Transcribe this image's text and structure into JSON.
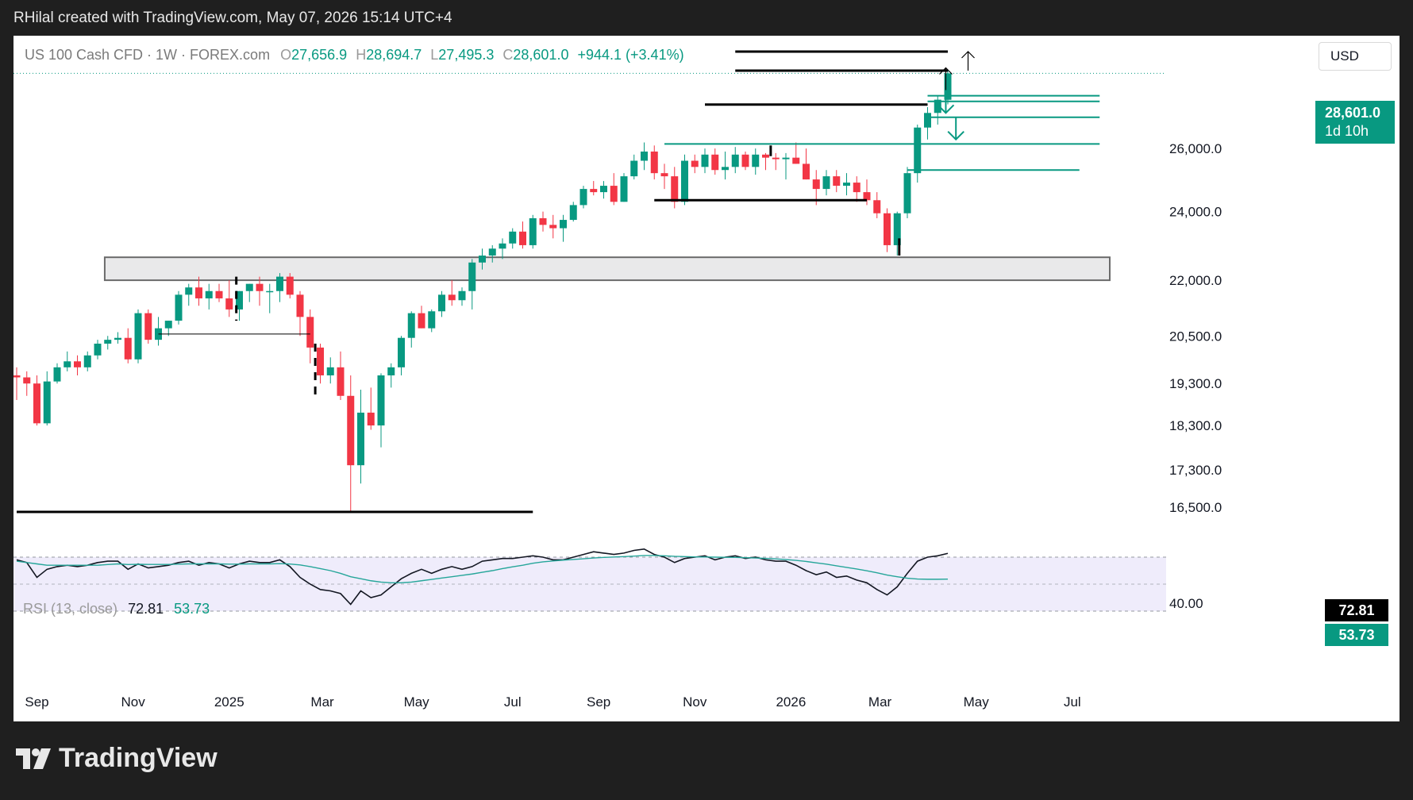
{
  "header": {
    "attribution": "RHilal created with TradingView.com, May 07, 2026 15:14 UTC+4"
  },
  "legend": {
    "symbol": "US 100 Cash CFD · 1W · FOREX.com",
    "o_label": "O",
    "o_value": "27,656.9",
    "h_label": "H",
    "h_value": "28,694.7",
    "l_label": "L",
    "l_value": "27,495.3",
    "c_label": "C",
    "c_value": "28,601.0",
    "change": "+944.1 (+3.41%)"
  },
  "currency_button": "USD",
  "price_tag": {
    "price": "28,601.0",
    "countdown": "1d 10h"
  },
  "rsi": {
    "label": "RSI (13, close)",
    "value": "72.81",
    "ma_value": "53.73"
  },
  "brand": {
    "name": "TradingView"
  },
  "colors": {
    "up": "#089981",
    "down": "#f23645",
    "rsi_line": "#131722",
    "rsi_ma": "#26a69a",
    "rsi_band": "#efecfb"
  },
  "chart_data": {
    "type": "candlestick",
    "price_axis_labels": [
      "26,000.0",
      "24,000.0",
      "22,000.0",
      "20,500.0",
      "19,300.0",
      "18,300.0",
      "17,300.0",
      "16,500.0"
    ],
    "rsi_axis_labels": [
      "40.00"
    ],
    "time_axis_labels": [
      "Sep",
      "Nov",
      "2025",
      "Mar",
      "May",
      "Jul",
      "Sep",
      "Nov",
      "2026",
      "Mar",
      "May",
      "Jul"
    ],
    "scale": "log",
    "candles": [
      [
        19500,
        19700,
        18900,
        19450
      ],
      [
        19450,
        19600,
        19000,
        19300
      ],
      [
        19300,
        19500,
        18300,
        18350
      ],
      [
        18350,
        19600,
        18300,
        19350
      ],
      [
        19350,
        19800,
        19300,
        19700
      ],
      [
        19700,
        20100,
        19600,
        19850
      ],
      [
        19850,
        20000,
        19500,
        19700
      ],
      [
        19700,
        20100,
        19600,
        20000
      ],
      [
        20000,
        20400,
        19900,
        20300
      ],
      [
        20300,
        20500,
        20150,
        20400
      ],
      [
        20400,
        20600,
        20300,
        20450
      ],
      [
        20450,
        20700,
        19800,
        19900
      ],
      [
        19900,
        21200,
        19800,
        21100
      ],
      [
        21100,
        21200,
        20300,
        20400
      ],
      [
        20400,
        21000,
        20250,
        20700
      ],
      [
        20700,
        20900,
        20500,
        20900
      ],
      [
        20900,
        21700,
        20800,
        21600
      ],
      [
        21600,
        21900,
        21300,
        21800
      ],
      [
        21800,
        22100,
        21300,
        21500
      ],
      [
        21500,
        21900,
        21200,
        21700
      ],
      [
        21700,
        21900,
        21400,
        21500
      ],
      [
        21500,
        22000,
        21000,
        21200
      ],
      [
        21200,
        21700,
        20900,
        21700
      ],
      [
        21700,
        21900,
        21400,
        21900
      ],
      [
        21900,
        22100,
        21300,
        21700
      ],
      [
        21700,
        21900,
        21100,
        21700
      ],
      [
        21700,
        22200,
        21400,
        22100
      ],
      [
        22100,
        22200,
        21500,
        21600
      ],
      [
        21600,
        21700,
        20500,
        21000
      ],
      [
        21000,
        21200,
        19800,
        20200
      ],
      [
        20200,
        20300,
        19300,
        19500
      ],
      [
        19500,
        19950,
        19300,
        19700
      ],
      [
        19700,
        20100,
        18900,
        19000
      ],
      [
        19000,
        19500,
        16400,
        17400
      ],
      [
        17400,
        19150,
        17000,
        18600
      ],
      [
        18600,
        19200,
        18200,
        18300
      ],
      [
        18300,
        19550,
        17800,
        19500
      ],
      [
        19500,
        19800,
        19200,
        19700
      ],
      [
        19700,
        20500,
        19500,
        20450
      ],
      [
        20450,
        21150,
        20200,
        21100
      ],
      [
        21100,
        21300,
        20700,
        20700
      ],
      [
        20700,
        21200,
        20600,
        21150
      ],
      [
        21150,
        21700,
        21000,
        21600
      ],
      [
        21600,
        22000,
        21300,
        21450
      ],
      [
        21450,
        21800,
        21300,
        21700
      ],
      [
        21700,
        22600,
        21200,
        22500
      ],
      [
        22500,
        22900,
        22300,
        22700
      ],
      [
        22700,
        23000,
        22500,
        22900
      ],
      [
        22900,
        23200,
        22600,
        23050
      ],
      [
        23050,
        23500,
        22900,
        23400
      ],
      [
        23400,
        23700,
        22900,
        23000
      ],
      [
        23000,
        23900,
        22900,
        23800
      ],
      [
        23800,
        24000,
        23400,
        23600
      ],
      [
        23600,
        23900,
        23200,
        23500
      ],
      [
        23500,
        23900,
        23100,
        23750
      ],
      [
        23750,
        24300,
        23700,
        24200
      ],
      [
        24200,
        24800,
        24100,
        24700
      ],
      [
        24700,
        24950,
        24500,
        24600
      ],
      [
        24600,
        24950,
        24400,
        24800
      ],
      [
        24800,
        25200,
        24200,
        24300
      ],
      [
        24300,
        25200,
        24300,
        25100
      ],
      [
        25100,
        25800,
        25000,
        25600
      ],
      [
        25600,
        26200,
        25300,
        25900
      ],
      [
        25900,
        26100,
        25000,
        25200
      ],
      [
        25200,
        25500,
        24700,
        25100
      ],
      [
        25100,
        25400,
        24100,
        24300
      ],
      [
        24300,
        25800,
        24200,
        25600
      ],
      [
        25600,
        25800,
        25200,
        25400
      ],
      [
        25400,
        26000,
        25200,
        25800
      ],
      [
        25800,
        26000,
        25150,
        25300
      ],
      [
        25300,
        25900,
        25000,
        25400
      ],
      [
        25400,
        26050,
        25200,
        25800
      ],
      [
        25800,
        25900,
        25300,
        25400
      ],
      [
        25400,
        26000,
        25150,
        25800
      ],
      [
        25800,
        25850,
        25300,
        25700
      ],
      [
        25700,
        25850,
        25300,
        25650
      ],
      [
        25650,
        25850,
        25000,
        25700
      ],
      [
        25700,
        26200,
        25500,
        25500
      ],
      [
        25500,
        26000,
        25000,
        25000
      ],
      [
        25000,
        25300,
        24200,
        24700
      ],
      [
        24700,
        25300,
        24500,
        25100
      ],
      [
        25100,
        25300,
        24600,
        24800
      ],
      [
        24800,
        25200,
        24500,
        24900
      ],
      [
        24900,
        25100,
        24300,
        24600
      ],
      [
        24600,
        25000,
        24200,
        24350
      ],
      [
        24350,
        24600,
        23800,
        23950
      ],
      [
        23950,
        24100,
        22800,
        23000
      ],
      [
        23000,
        24000,
        22700,
        23950
      ],
      [
        23950,
        25400,
        23800,
        25200
      ],
      [
        25200,
        26800,
        24900,
        26700
      ],
      [
        26700,
        27400,
        26300,
        27200
      ],
      [
        27200,
        27800,
        26800,
        27660
      ],
      [
        27656.9,
        28694.7,
        27495.3,
        28601.0
      ]
    ],
    "rsi": [
      68,
      66,
      55,
      61,
      63,
      64,
      63,
      64,
      66,
      67,
      67,
      61,
      65,
      62,
      63,
      64,
      66,
      67,
      64,
      66,
      65,
      62,
      65,
      67,
      66,
      66,
      68,
      63,
      55,
      50,
      46,
      45,
      43,
      35,
      45,
      40,
      42,
      48,
      54,
      58,
      61,
      58,
      61,
      63,
      61,
      63,
      67,
      68,
      69,
      69,
      70,
      71,
      70,
      68,
      68,
      70,
      72,
      74,
      73,
      72,
      73,
      75,
      76,
      72,
      70,
      66,
      69,
      70,
      71,
      68,
      70,
      71,
      69,
      70,
      68,
      67,
      67,
      64,
      60,
      57,
      59,
      55,
      56,
      53,
      51,
      46,
      42,
      48,
      58,
      67,
      70,
      71,
      72.81
    ],
    "rsi_ma": [
      67,
      66,
      65,
      64,
      64,
      64,
      64,
      64,
      64,
      64.5,
      65,
      64.5,
      64.7,
      64.6,
      64.6,
      64.6,
      64.8,
      65,
      65,
      65,
      65,
      64.8,
      64.8,
      65,
      65,
      65,
      65.2,
      64.9,
      64.2,
      63,
      61.5,
      60,
      58,
      55.5,
      54,
      52.5,
      51.5,
      51,
      51,
      51.5,
      52.5,
      53.5,
      54.5,
      55.5,
      56.5,
      57.5,
      58.8,
      60,
      61.5,
      62.8,
      64,
      65.5,
      66.5,
      67.2,
      67.8,
      68.3,
      68.8,
      69.4,
      69.8,
      70.1,
      70.4,
      70.8,
      71.2,
      71.2,
      71,
      70.6,
      70.4,
      70.2,
      70.1,
      70,
      69.9,
      69.8,
      69.6,
      69.4,
      69.1,
      68.7,
      68.2,
      67.6,
      66.8,
      65.8,
      64.8,
      63.6,
      62.4,
      61.2,
      59.9,
      58.4,
      56.7,
      55.5,
      54.4,
      53.8,
      53.6,
      53.6,
      53.73
    ],
    "levels": [
      {
        "price": 29400,
        "start": 71,
        "end": 92,
        "style": "black"
      },
      {
        "price": 28700,
        "start": 71,
        "end": 92,
        "style": "black"
      },
      {
        "price": 27490,
        "start": 68,
        "end": 90,
        "style": "black"
      },
      {
        "price": 24350,
        "start": 63,
        "end": 84,
        "style": "black"
      },
      {
        "price": 16400,
        "start": 0,
        "end": 51,
        "style": "black"
      },
      {
        "price": 20550,
        "start": 14,
        "end": 29,
        "style": "thin"
      },
      {
        "price": 27800,
        "start": 90,
        "end": 107,
        "style": "green"
      },
      {
        "price": 27600,
        "start": 90,
        "end": 107,
        "style": "green"
      },
      {
        "price": 27050,
        "start": 90,
        "end": 107,
        "style": "green"
      },
      {
        "price": 26150,
        "start": 64,
        "end": 107,
        "style": "green"
      },
      {
        "price": 25300,
        "start": 88,
        "end": 105,
        "style": "green"
      }
    ],
    "zone": {
      "low": 22000,
      "high": 22650,
      "start": 8.7,
      "end": 108
    },
    "arrows": [
      {
        "bar": 94,
        "from": 28700,
        "to": 29400,
        "dir": "up"
      },
      {
        "bar": 91.8,
        "from": 28000,
        "to": 28800,
        "dir": "up"
      },
      {
        "bar": 91.8,
        "from": 27850,
        "to": 27200,
        "dir": "down"
      },
      {
        "bar": 92.8,
        "from": 27050,
        "to": 26300,
        "dir": "down"
      }
    ]
  }
}
